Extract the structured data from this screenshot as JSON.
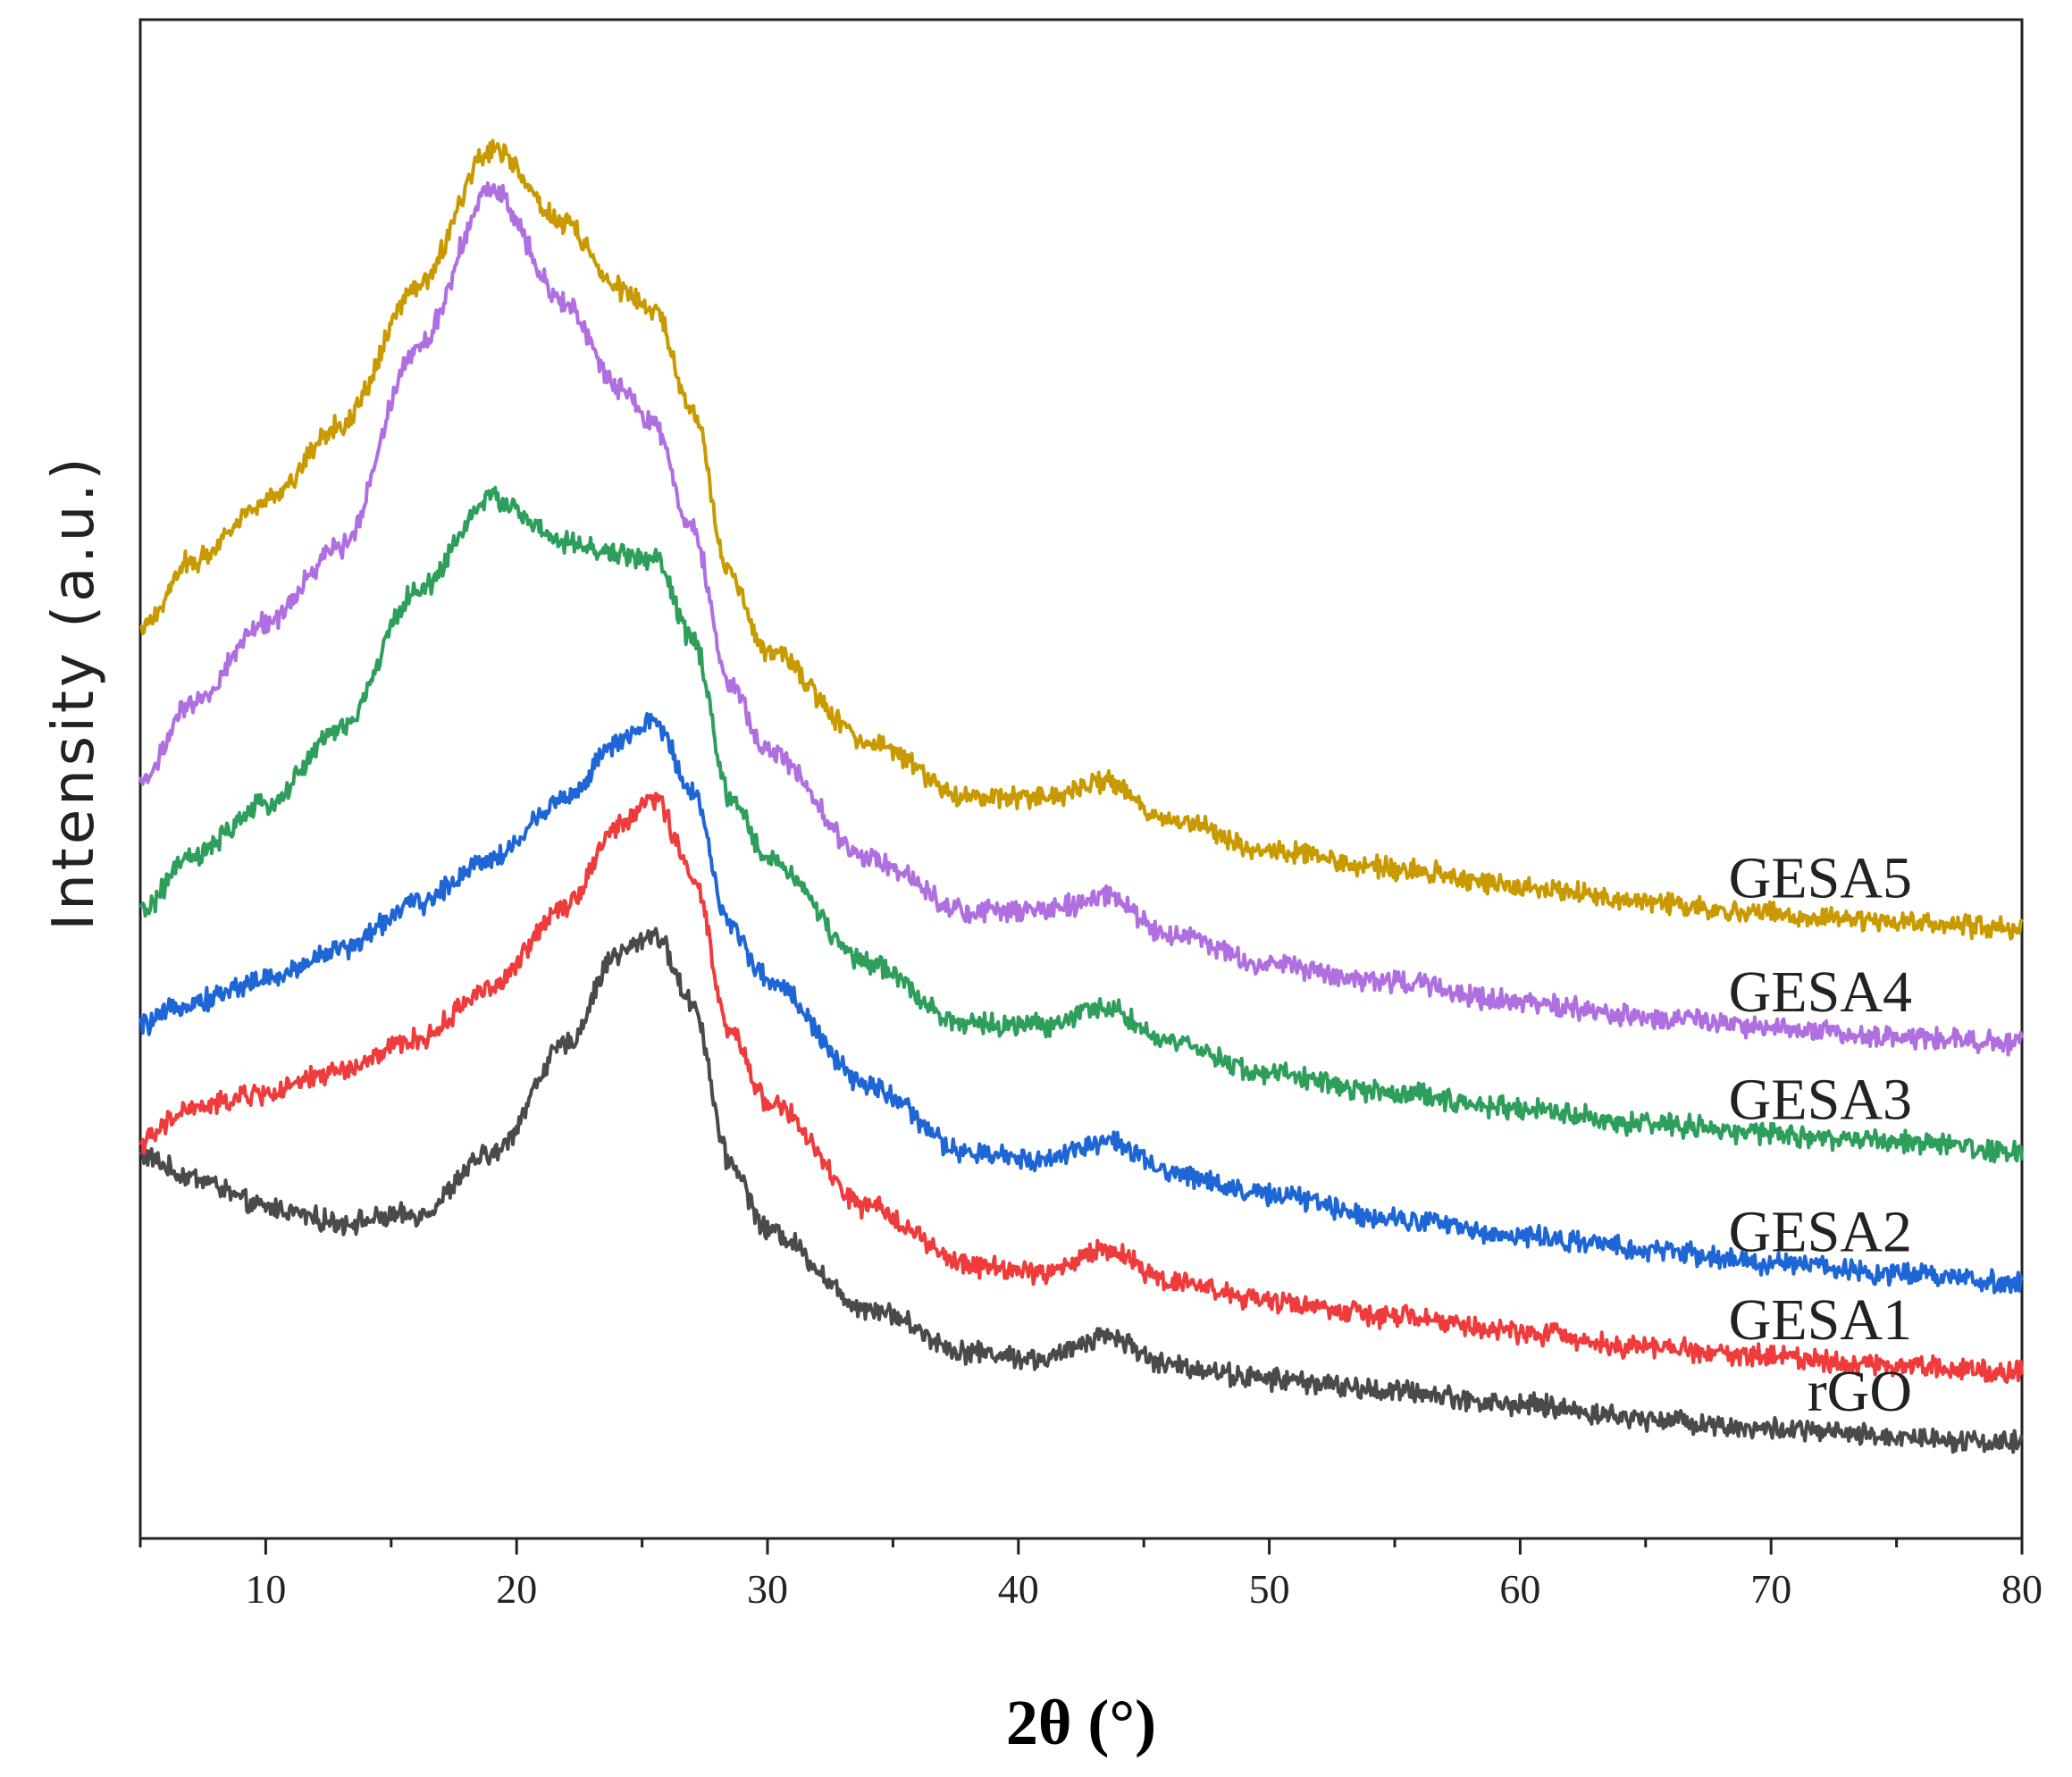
{
  "chart_data": {
    "type": "line",
    "title": "",
    "xlabel": "2θ (°)",
    "ylabel": "Intensity (a.u.)",
    "xlim": [
      5,
      80
    ],
    "ylim": [
      0,
      1
    ],
    "x_ticks": [
      10,
      20,
      30,
      40,
      50,
      60,
      70,
      80
    ],
    "y_ticks_shown": false,
    "grid": false,
    "x": [
      5,
      7,
      10,
      13,
      16,
      19,
      22,
      24,
      25.5,
      27,
      28.5,
      30,
      34,
      38,
      41,
      43.5,
      46,
      50,
      55,
      60,
      65,
      70,
      75,
      80
    ],
    "series": [
      {
        "name": "rGO",
        "color": "#4a4a4a",
        "values": [
          0.252,
          0.238,
          0.218,
          0.208,
          0.213,
          0.253,
          0.325,
          0.385,
          0.398,
          0.353,
          0.248,
          0.203,
          0.152,
          0.123,
          0.118,
          0.134,
          0.114,
          0.105,
          0.097,
          0.088,
          0.079,
          0.072,
          0.067,
          0.063
        ]
      },
      {
        "name": "GESA1",
        "color": "#ef3b3b",
        "values": [
          0.261,
          0.283,
          0.293,
          0.308,
          0.328,
          0.363,
          0.418,
          0.468,
          0.488,
          0.438,
          0.333,
          0.288,
          0.218,
          0.18,
          0.175,
          0.19,
          0.17,
          0.156,
          0.146,
          0.136,
          0.126,
          0.12,
          0.114,
          0.11
        ]
      },
      {
        "name": "GESA2",
        "color": "#1e66d6",
        "values": [
          0.338,
          0.353,
          0.368,
          0.388,
          0.418,
          0.448,
          0.488,
          0.523,
          0.538,
          0.493,
          0.403,
          0.368,
          0.298,
          0.253,
          0.25,
          0.262,
          0.241,
          0.226,
          0.211,
          0.199,
          0.19,
          0.181,
          0.175,
          0.168
        ]
      },
      {
        "name": "GESA3",
        "color": "#2e9e5b",
        "values": [
          0.413,
          0.448,
          0.483,
          0.533,
          0.623,
          0.685,
          0.655,
          0.648,
          0.645,
          0.593,
          0.488,
          0.448,
          0.378,
          0.338,
          0.338,
          0.35,
          0.326,
          0.306,
          0.293,
          0.283,
          0.273,
          0.266,
          0.261,
          0.255
        ]
      },
      {
        "name": "GESA4",
        "color": "#b06fe0",
        "values": [
          0.498,
          0.548,
          0.603,
          0.653,
          0.783,
          0.888,
          0.813,
          0.758,
          0.733,
          0.663,
          0.563,
          0.518,
          0.448,
          0.413,
          0.413,
          0.422,
          0.398,
          0.378,
          0.366,
          0.353,
          0.343,
          0.336,
          0.33,
          0.326
        ]
      },
      {
        "name": "GESA5",
        "color": "#c99a00",
        "values": [
          0.598,
          0.643,
          0.683,
          0.733,
          0.823,
          0.915,
          0.865,
          0.823,
          0.808,
          0.743,
          0.633,
          0.583,
          0.525,
          0.488,
          0.488,
          0.498,
          0.473,
          0.453,
          0.441,
          0.429,
          0.419,
          0.411,
          0.406,
          0.401
        ]
      }
    ]
  }
}
